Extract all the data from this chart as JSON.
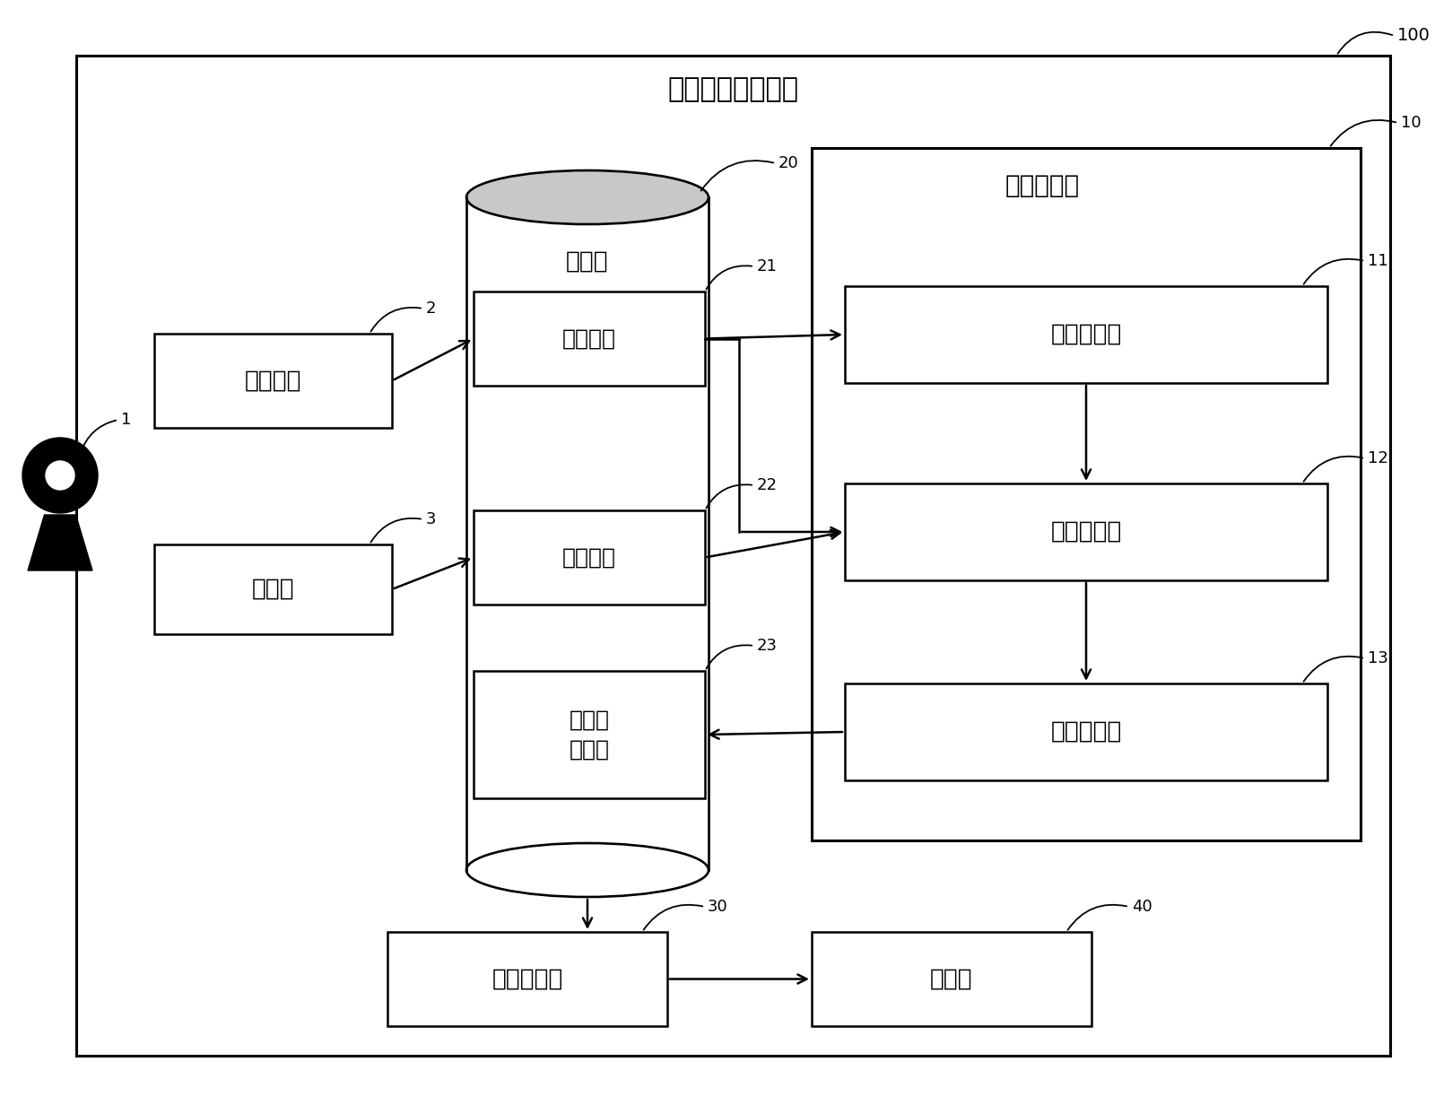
{
  "title": "色素浓度计算装置",
  "label_100": "100",
  "label_1": "1",
  "label_2": "2",
  "label_3": "3",
  "label_10": "10",
  "label_11": "11",
  "label_12": "12",
  "label_13": "13",
  "label_20": "20",
  "label_21": "21",
  "label_22": "22",
  "label_23": "23",
  "label_30": "30",
  "label_40": "40",
  "text_camera": "拍摄装置",
  "text_input": "输入部",
  "text_storage": "存储部",
  "text_coeff_det": "系数确定部",
  "text_capture_data": "拍摄数据",
  "text_condition_data": "条件数据",
  "text_extract_coeff": "提取系\n数数据",
  "text_range_set": "范围设定部",
  "text_response_calc": "响应计算部",
  "text_coeff_calc": "系数计算部",
  "text_conc_calc": "浓度计算部",
  "text_display": "显示部",
  "bg_color": "#ffffff",
  "font_cn": "Noto Sans CJK SC",
  "font_fallback": "sans-serif"
}
